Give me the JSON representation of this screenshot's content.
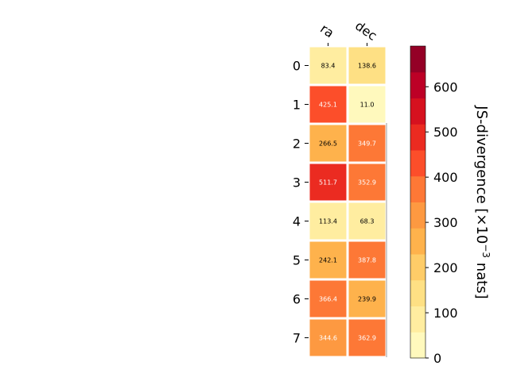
{
  "chart_data": {
    "type": "heatmap",
    "columns": [
      "ra",
      "dec"
    ],
    "rows": [
      "0",
      "1",
      "2",
      "3",
      "4",
      "5",
      "6",
      "7"
    ],
    "values": [
      [
        83.4,
        138.6
      ],
      [
        425.1,
        11.0
      ],
      [
        266.5,
        349.7
      ],
      [
        511.7,
        352.9
      ],
      [
        113.4,
        68.3
      ],
      [
        242.1,
        387.8
      ],
      [
        366.4,
        239.9
      ],
      [
        344.6,
        362.9
      ]
    ],
    "value_labels": [
      [
        "83.4",
        "138.6"
      ],
      [
        "425.1",
        "11.0"
      ],
      [
        "266.5",
        "349.7"
      ],
      [
        "511.7",
        "352.9"
      ],
      [
        "113.4",
        "68.3"
      ],
      [
        "242.1",
        "387.8"
      ],
      [
        "366.4",
        "239.9"
      ],
      [
        "344.6",
        "362.9"
      ]
    ],
    "colorbar": {
      "label_main": "JS-divergence [×10",
      "label_exp": "−3",
      "label_unit": " nats]",
      "range": [
        0,
        690
      ],
      "ticks": [
        0,
        100,
        200,
        300,
        400,
        500,
        600
      ],
      "tick_labels": [
        "0",
        "100",
        "200",
        "300",
        "400",
        "500",
        "600"
      ],
      "colormap": "YlOrRd",
      "bins": 12
    },
    "grid": false
  }
}
